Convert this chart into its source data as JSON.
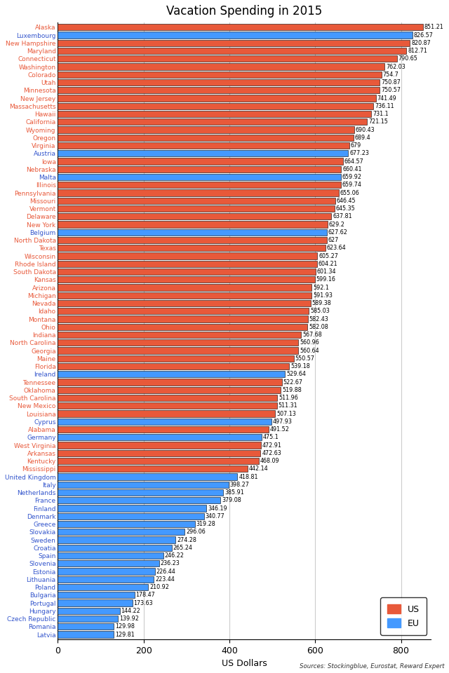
{
  "title": "Vacation Spending in 2015",
  "xlabel": "US Dollars",
  "source_text": "Sources: Stockingblue, Eurostat, Reward Expert",
  "categories": [
    "Latvia",
    "Romania",
    "Czech Republic",
    "Hungary",
    "Portugal",
    "Bulgaria",
    "Poland",
    "Lithuania",
    "Estonia",
    "Slovenia",
    "Spain",
    "Croatia",
    "Sweden",
    "Slovakia",
    "Greece",
    "Denmark",
    "Finland",
    "France",
    "Netherlands",
    "Italy",
    "United Kingdom",
    "Mississippi",
    "Kentucky",
    "Arkansas",
    "West Virginia",
    "Germany",
    "Alabama",
    "Cyprus",
    "Louisiana",
    "New Mexico",
    "South Carolina",
    "Oklahoma",
    "Tennessee",
    "Ireland",
    "Florida",
    "Maine",
    "Georgia",
    "North Carolina",
    "Indiana",
    "Ohio",
    "Montana",
    "Idaho",
    "Nevada",
    "Michigan",
    "Arizona",
    "Kansas",
    "South Dakota",
    "Rhode Island",
    "Wisconsin",
    "Texas",
    "North Dakota",
    "Belgium",
    "New York",
    "Delaware",
    "Vermont",
    "Missouri",
    "Pennsylvania",
    "Illinois",
    "Malta",
    "Nebraska",
    "Iowa",
    "Austria",
    "Virginia",
    "Oregon",
    "Wyoming",
    "California",
    "Hawaii",
    "Massachusetts",
    "New Jersey",
    "Minnesota",
    "Utah",
    "Colorado",
    "Washington",
    "Connecticut",
    "Maryland",
    "New Hampshire",
    "Luxembourg",
    "Alaska"
  ],
  "values": [
    129.81,
    129.98,
    139.92,
    144.22,
    173.63,
    178.47,
    210.92,
    223.44,
    226.44,
    236.23,
    246.22,
    265.24,
    274.28,
    296.06,
    319.28,
    340.77,
    346.19,
    379.08,
    385.91,
    398.27,
    418.81,
    442.14,
    468.09,
    472.63,
    472.91,
    475.1,
    491.52,
    497.93,
    507.13,
    511.31,
    511.96,
    519.88,
    522.67,
    529.64,
    539.18,
    550.57,
    560.64,
    560.96,
    567.68,
    582.08,
    582.43,
    585.03,
    589.38,
    591.93,
    592.1,
    599.16,
    601.34,
    604.21,
    605.27,
    623.64,
    627,
    627.62,
    629.2,
    637.81,
    645.35,
    646.45,
    655.06,
    659.74,
    659.92,
    660.41,
    664.57,
    677.23,
    679,
    689.4,
    690.43,
    721.15,
    731.1,
    736.11,
    741.49,
    750.57,
    750.87,
    754.7,
    762.03,
    790.65,
    812.71,
    820.87,
    826.57,
    851.21
  ],
  "colors": [
    "EU",
    "EU",
    "EU",
    "EU",
    "EU",
    "EU",
    "EU",
    "EU",
    "EU",
    "EU",
    "EU",
    "EU",
    "EU",
    "EU",
    "EU",
    "EU",
    "EU",
    "EU",
    "EU",
    "EU",
    "EU",
    "US",
    "US",
    "US",
    "US",
    "EU",
    "US",
    "EU",
    "US",
    "US",
    "US",
    "US",
    "US",
    "EU",
    "US",
    "US",
    "US",
    "US",
    "US",
    "US",
    "US",
    "US",
    "US",
    "US",
    "US",
    "US",
    "US",
    "US",
    "US",
    "US",
    "US",
    "EU",
    "US",
    "US",
    "US",
    "US",
    "US",
    "US",
    "EU",
    "US",
    "US",
    "EU",
    "US",
    "US",
    "US",
    "US",
    "US",
    "US",
    "US",
    "US",
    "US",
    "US",
    "US",
    "US",
    "US",
    "US",
    "EU",
    "US"
  ],
  "color_map": {
    "US": "#E8593A",
    "EU": "#4499FF"
  },
  "bg_color": "#FFFFFF",
  "bar_height": 0.82,
  "value_fontsize": 5.8,
  "label_fontsize": 6.5
}
